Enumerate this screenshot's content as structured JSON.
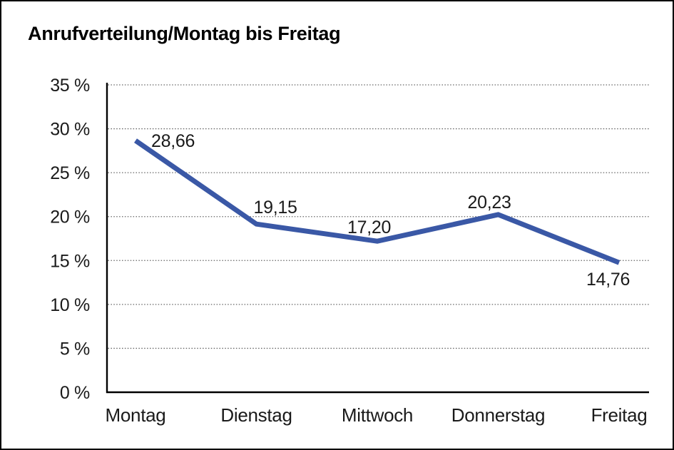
{
  "title": "Anrufverteilung/Montag bis Freitag",
  "colors": {
    "line": "#3A58A6",
    "text": "#1a1a1a",
    "axis": "#000000",
    "grid": "#666666",
    "page_border": "#000000",
    "background": "#ffffff"
  },
  "chart_data": {
    "type": "line",
    "title": "Anrufverteilung/Montag bis Freitag",
    "categories": [
      "Montag",
      "Dienstag",
      "Mittwoch",
      "Donnerstag",
      "Freitag"
    ],
    "values": [
      28.66,
      19.15,
      17.2,
      20.23,
      14.76
    ],
    "value_labels": [
      "28,66",
      "19,15",
      "17,20",
      "20,23",
      "14,76"
    ],
    "xlabel": "",
    "ylabel": "",
    "ylim": [
      0,
      35
    ],
    "ytick_step": 5,
    "ytick_labels": [
      "0 %",
      "5 %",
      "10 %",
      "15 %",
      "20 %",
      "25 %",
      "30 %",
      "35 %"
    ],
    "grid": "horizontal-dotted",
    "legend": "none",
    "series_color": "#3A58A6"
  }
}
